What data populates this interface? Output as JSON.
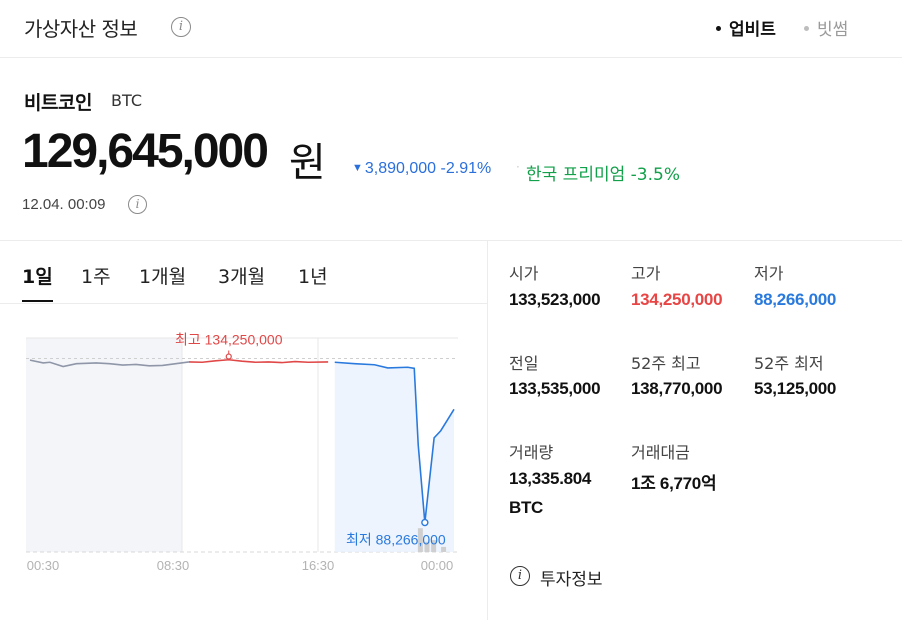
{
  "header": {
    "title": "가상자산 정보",
    "info_icon": "i",
    "exchanges": [
      {
        "label": "업비트",
        "active": true
      },
      {
        "label": "빗썸",
        "active": false
      }
    ]
  },
  "coin": {
    "name": "비트코인",
    "symbol": "BTC",
    "price": "129,645,000",
    "price_unit": "원",
    "change_arrow": "▼",
    "change_amount": "3,890,000",
    "change_percent": "-2.91%",
    "premium_label": "한국 프리미엄",
    "premium_value": "-3.5%",
    "timestamp": "12.04. 00:09"
  },
  "tabs": [
    {
      "label": "1일",
      "active": true
    },
    {
      "label": "1주",
      "active": false
    },
    {
      "label": "1개월",
      "active": false
    },
    {
      "label": "3개월",
      "active": false
    },
    {
      "label": "1년",
      "active": false
    }
  ],
  "chart_data": {
    "type": "line",
    "x_ticks": [
      "00:30",
      "08:30",
      "16:30",
      "00:00"
    ],
    "high_label": "최고 134,250,000",
    "low_label": "최저 88,266,000",
    "high": 134250000,
    "low": 88266000,
    "ylim": [
      80000000,
      140000000
    ],
    "segments": [
      {
        "color": "#8e96a8",
        "points": [
          [
            0,
            133800000
          ],
          [
            2,
            133000000
          ],
          [
            3,
            133200000
          ],
          [
            5,
            132000000
          ],
          [
            7,
            132800000
          ],
          [
            10,
            133000000
          ],
          [
            12,
            132800000
          ],
          [
            14,
            132400000
          ],
          [
            16,
            132600000
          ],
          [
            18,
            132200000
          ],
          [
            20,
            132300000
          ],
          [
            22,
            132800000
          ],
          [
            24,
            133300000
          ]
        ]
      },
      {
        "color": "#e04848",
        "points": [
          [
            24,
            133300000
          ],
          [
            26,
            133200000
          ],
          [
            28,
            133600000
          ],
          [
            30,
            133900000
          ],
          [
            32,
            133500000
          ],
          [
            34,
            133200000
          ],
          [
            36,
            133300000
          ],
          [
            38,
            133100000
          ],
          [
            40,
            133400000
          ],
          [
            42,
            133200000
          ],
          [
            45,
            133300000
          ]
        ]
      },
      {
        "color": "#2a7ade",
        "points": [
          [
            46,
            133200000
          ],
          [
            49,
            132800000
          ],
          [
            52,
            132500000
          ],
          [
            54,
            131600000
          ],
          [
            57,
            131800000
          ],
          [
            58,
            131500000
          ],
          [
            58.6,
            110000000
          ],
          [
            59.6,
            88266000
          ],
          [
            61,
            112000000
          ],
          [
            62,
            114000000
          ],
          [
            63,
            117000000
          ],
          [
            64,
            120000000
          ]
        ]
      }
    ],
    "x_max": 64,
    "volume_bars": [
      [
        59,
        0.7
      ],
      [
        60,
        0.3
      ],
      [
        61,
        0.35
      ],
      [
        62.5,
        0.15
      ]
    ]
  },
  "stats": [
    {
      "label": "시가",
      "value": "133,523,000",
      "tone": ""
    },
    {
      "label": "고가",
      "value": "134,250,000",
      "tone": "red"
    },
    {
      "label": "저가",
      "value": "88,266,000",
      "tone": "blue"
    },
    {
      "label": "전일",
      "value": "133,535,000",
      "tone": ""
    },
    {
      "label": "52주 최고",
      "value": "138,770,000",
      "tone": ""
    },
    {
      "label": "52주 최저",
      "value": "53,125,000",
      "tone": ""
    },
    {
      "label": "거래량",
      "value": "13,335.804",
      "value2": "BTC",
      "tone": ""
    },
    {
      "label": "거래대금",
      "value": "1조 6,770억",
      "tone": ""
    }
  ],
  "invest": {
    "label": "투자정보",
    "icon": "i"
  },
  "colors": {
    "down": "#2a7ade",
    "up": "#e84545",
    "premium": "#12a04a"
  }
}
